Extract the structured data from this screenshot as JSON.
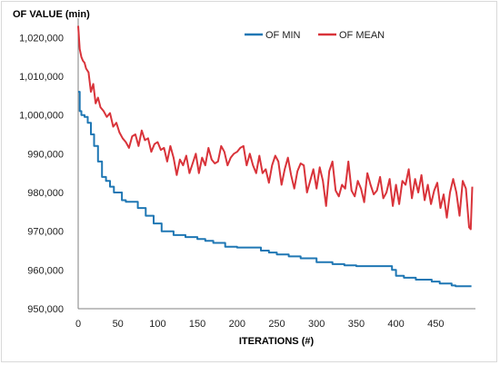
{
  "chart_data": {
    "type": "line",
    "title": "",
    "ylabel": "OF VALUE (min)",
    "xlabel": "ITERATIONS (#)",
    "xlim": [
      0,
      500
    ],
    "ylim": [
      950000,
      1025000
    ],
    "xticks": [
      0,
      50,
      100,
      150,
      200,
      250,
      300,
      350,
      400,
      450
    ],
    "yticks": [
      950000,
      960000,
      970000,
      980000,
      990000,
      1000000,
      1010000,
      1020000
    ],
    "xtick_labels": [
      "0",
      "50",
      "100",
      "150",
      "200",
      "250",
      "300",
      "350",
      "400",
      "450"
    ],
    "ytick_labels": [
      "950,000",
      "960,000",
      "970,000",
      "980,000",
      "990,000",
      "1,000,000",
      "1,010,000",
      "1,020,000"
    ],
    "grid": false,
    "legend_position": "top-right",
    "series": [
      {
        "name": "OF MIN",
        "color": "#1f77b4",
        "step": true,
        "x": [
          0,
          2,
          4,
          8,
          12,
          16,
          20,
          25,
          30,
          35,
          40,
          45,
          55,
          60,
          75,
          85,
          95,
          105,
          120,
          135,
          150,
          160,
          170,
          185,
          200,
          230,
          240,
          250,
          265,
          280,
          300,
          320,
          335,
          350,
          365,
          395,
          400,
          410,
          425,
          445,
          455,
          470,
          475,
          495
        ],
        "y": [
          1006000,
          1001000,
          1000000,
          999500,
          998000,
          995000,
          992000,
          988000,
          984000,
          983000,
          981500,
          980000,
          978000,
          977600,
          976000,
          974000,
          972000,
          970000,
          969000,
          968500,
          968000,
          967500,
          967000,
          966000,
          965800,
          965000,
          964500,
          964000,
          963500,
          963000,
          962000,
          961500,
          961200,
          961000,
          961000,
          960000,
          958500,
          958000,
          957500,
          957000,
          956500,
          956000,
          955800,
          955800
        ]
      },
      {
        "name": "OF MEAN",
        "color": "#d9333a",
        "step": false,
        "x": [
          0,
          2,
          4,
          6,
          8,
          10,
          13,
          16,
          19,
          22,
          25,
          28,
          32,
          36,
          40,
          44,
          48,
          52,
          56,
          60,
          64,
          68,
          72,
          76,
          80,
          84,
          88,
          92,
          96,
          100,
          104,
          108,
          112,
          116,
          120,
          124,
          128,
          132,
          136,
          140,
          144,
          148,
          152,
          156,
          160,
          164,
          168,
          172,
          176,
          180,
          184,
          188,
          192,
          196,
          200,
          204,
          208,
          212,
          216,
          220,
          224,
          228,
          232,
          236,
          240,
          244,
          248,
          252,
          256,
          260,
          264,
          268,
          272,
          276,
          280,
          284,
          288,
          292,
          296,
          300,
          304,
          308,
          312,
          316,
          320,
          324,
          328,
          332,
          336,
          340,
          344,
          348,
          352,
          356,
          360,
          364,
          368,
          372,
          376,
          380,
          384,
          388,
          392,
          396,
          400,
          404,
          408,
          412,
          416,
          420,
          424,
          428,
          432,
          436,
          440,
          444,
          448,
          452,
          456,
          460,
          464,
          468,
          472,
          476,
          480,
          484,
          488,
          492,
          494,
          496
        ],
        "y": [
          1023000,
          1017000,
          1015000,
          1014000,
          1013500,
          1012000,
          1011000,
          1006000,
          1008000,
          1003000,
          1004500,
          1002000,
          1001000,
          999500,
          1000500,
          997000,
          998000,
          995500,
          994000,
          993000,
          991500,
          994500,
          995000,
          992000,
          996000,
          993500,
          994000,
          990500,
          992500,
          993000,
          991000,
          991500,
          988000,
          992000,
          989000,
          984500,
          988500,
          987000,
          989500,
          985000,
          987500,
          990000,
          985000,
          989000,
          987000,
          991500,
          988500,
          987500,
          988000,
          992000,
          990500,
          987000,
          989000,
          990000,
          990500,
          991500,
          992000,
          987000,
          990000,
          987000,
          985000,
          989500,
          985000,
          986000,
          982500,
          987000,
          989500,
          988000,
          982000,
          986000,
          989000,
          984500,
          981000,
          985500,
          987500,
          987000,
          980000,
          983000,
          986000,
          981000,
          986500,
          983000,
          976500,
          985500,
          988000,
          980500,
          979000,
          982000,
          981000,
          988000,
          980500,
          979000,
          983000,
          981000,
          977500,
          985000,
          982000,
          979500,
          980500,
          984000,
          978500,
          980000,
          983500,
          976500,
          982000,
          977000,
          983000,
          982000,
          986000,
          978500,
          983500,
          980000,
          984500,
          978000,
          982000,
          977000,
          980500,
          982500,
          976000,
          979500,
          973500,
          980000,
          983500,
          980000,
          974000,
          983000,
          981000,
          971000,
          970500,
          981500
        ]
      }
    ]
  }
}
